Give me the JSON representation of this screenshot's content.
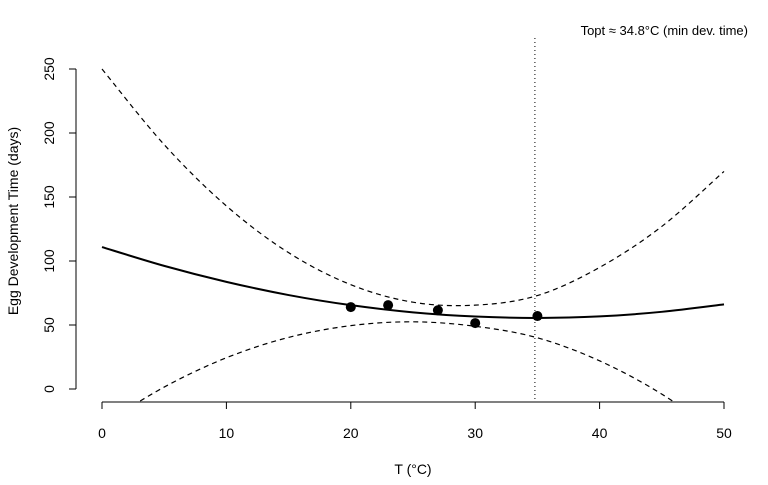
{
  "chart_data": {
    "type": "line",
    "title": "",
    "xlabel": "T (°C)",
    "ylabel": "Egg Development Time (days)",
    "xlim": [
      0,
      50
    ],
    "ylim": [
      -10,
      274
    ],
    "x_ticks": [
      0,
      10,
      20,
      30,
      40,
      50
    ],
    "y_ticks": [
      0,
      50,
      100,
      150,
      200,
      250
    ],
    "grid": false,
    "annotation": "Topt ≈ 34.8°C (min dev. time)",
    "topt": 34.8,
    "points": {
      "x": [
        20,
        23,
        27,
        30,
        35
      ],
      "y": [
        64,
        65.5,
        61.5,
        51.5,
        57
      ]
    },
    "curve_x": [
      0,
      5,
      10,
      15,
      20,
      25,
      30,
      35,
      40,
      45,
      50
    ],
    "series": [
      {
        "name": "fit",
        "style": "solid",
        "values": [
          110.9,
          96.2,
          83.7,
          73.4,
          65.5,
          59.9,
          56.6,
          55.5,
          56.7,
          60.3,
          66.1
        ]
      },
      {
        "name": "upper",
        "style": "dashed",
        "values": [
          250,
          190.9,
          143,
          106.5,
          81.5,
          67.8,
          65.5,
          73,
          95,
          127,
          170
        ]
      },
      {
        "name": "lower",
        "style": "dashed",
        "values": [
          -28,
          1.5,
          24.4,
          40.3,
          49.5,
          52.5,
          49,
          40,
          22,
          -4,
          -38
        ]
      }
    ]
  }
}
